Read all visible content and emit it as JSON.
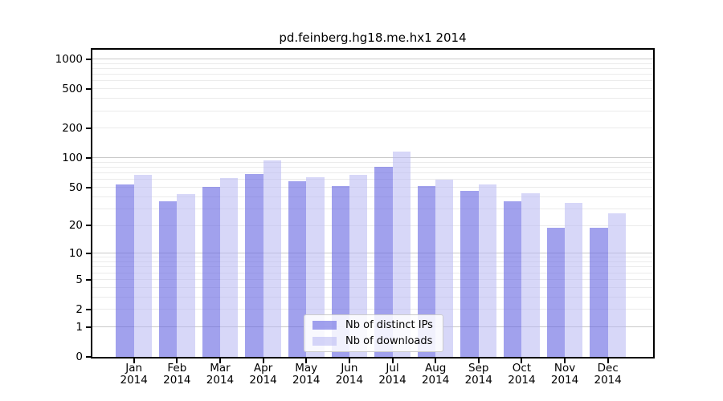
{
  "chart_data": {
    "type": "bar",
    "title": "pd.feinberg.hg18.me.hx1 2014",
    "year_label": "2014",
    "categories": [
      "Jan",
      "Feb",
      "Mar",
      "Apr",
      "May",
      "Jun",
      "Jul",
      "Aug",
      "Sep",
      "Oct",
      "Nov",
      "Dec"
    ],
    "series": [
      {
        "name": "Nb of distinct IPs",
        "color": "rgba(104,104,226,0.62)",
        "values": [
          54,
          36,
          51,
          69,
          58,
          52,
          81,
          52,
          46,
          36,
          19,
          19
        ]
      },
      {
        "name": "Nb of downloads",
        "color": "rgba(182,182,242,0.55)",
        "values": [
          68,
          43,
          63,
          94,
          64,
          67,
          117,
          60,
          54,
          44,
          35,
          27
        ]
      }
    ],
    "yscale": "log1p",
    "ylim": [
      0,
      1250
    ],
    "yticks": [
      0,
      1,
      2,
      5,
      10,
      20,
      50,
      100,
      200,
      500,
      1000
    ],
    "major_gridlines": [
      1,
      10,
      100,
      1000
    ],
    "minor_gridlines": [
      2,
      3,
      4,
      5,
      6,
      7,
      8,
      9,
      20,
      30,
      40,
      50,
      60,
      70,
      80,
      90,
      200,
      300,
      400,
      500,
      600,
      700,
      800,
      900
    ],
    "grid": true,
    "legend_position": "lower center",
    "colors": {
      "major_grid": "#c9c9c9",
      "minor_grid": "#ebebeb",
      "axis": "#000000",
      "background": "#ffffff",
      "text": "#000000"
    }
  }
}
